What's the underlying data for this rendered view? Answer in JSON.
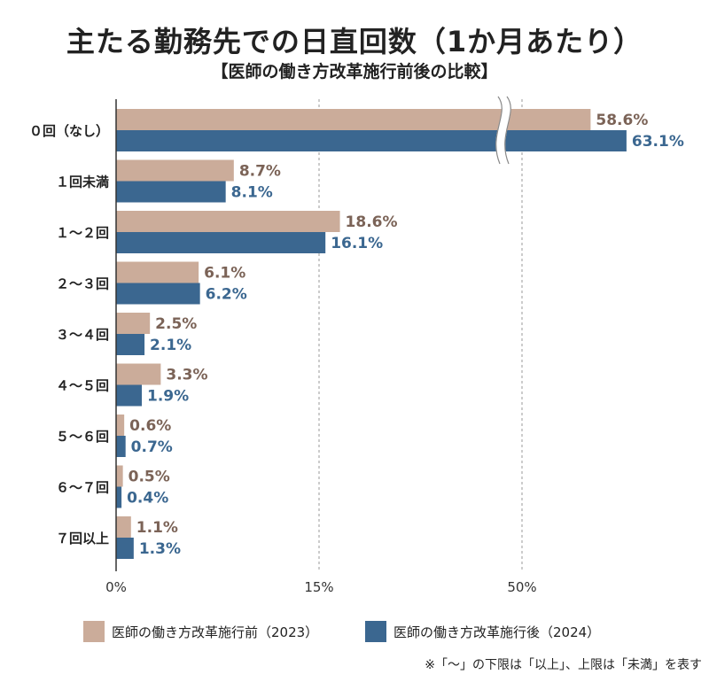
{
  "chart_data": {
    "type": "bar",
    "orientation": "horizontal",
    "title": "主たる勤務先での日直回数（1か月あたり）",
    "subtitle": "【医師の働き方改革施行前後の比較】",
    "categories": [
      "０回（なし）",
      "１回未満",
      "１〜２回",
      "２〜３回",
      "３〜４回",
      "４〜５回",
      "５〜６回",
      "６〜７回",
      "７回以上"
    ],
    "series": [
      {
        "name": "医師の働き方改革施行前（2023）",
        "color": "#cbac9a",
        "values": [
          58.6,
          8.7,
          18.6,
          6.1,
          2.5,
          3.3,
          0.6,
          0.5,
          1.1
        ],
        "labels": [
          "58.6%",
          "8.7%",
          "18.6%",
          "6.1%",
          "2.5%",
          "3.3%",
          "0.6%",
          "0.5%",
          "1.1%"
        ]
      },
      {
        "name": "医師の働き方改革施行後（2024）",
        "color": "#3b6790",
        "values": [
          63.1,
          8.1,
          16.1,
          6.2,
          2.1,
          1.9,
          0.7,
          0.4,
          1.3
        ],
        "labels": [
          "63.1%",
          "8.1%",
          "16.1%",
          "6.2%",
          "2.1%",
          "1.9%",
          "0.7%",
          "0.4%",
          "1.3%"
        ]
      }
    ],
    "x_ticks": [
      "0%",
      "15%",
      "50%"
    ],
    "x_tick_values": [
      0,
      15,
      50
    ],
    "axis_break": {
      "from": 15,
      "to": 50
    },
    "grid": "vertical-dashed",
    "legend": "bottom",
    "footnote": "※「〜」の下限は「以上」、上限は「未満」を表す"
  }
}
